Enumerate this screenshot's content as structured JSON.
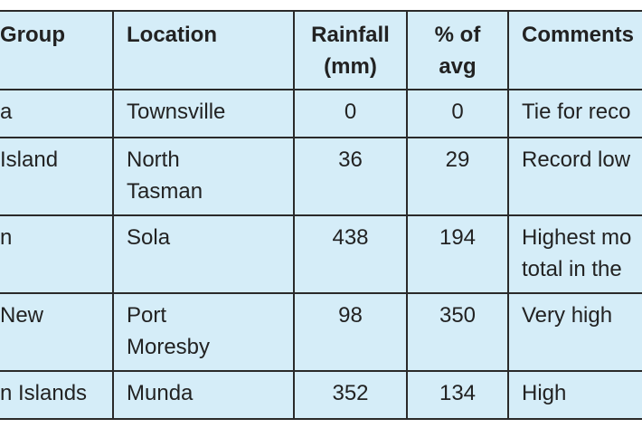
{
  "table": {
    "header": [
      "Group",
      "Location",
      [
        "Rainfall",
        "(mm)"
      ],
      [
        "% of",
        "avg"
      ],
      "Comments"
    ],
    "rows": [
      [
        "a",
        "Townsville",
        0,
        0,
        "Tie for reco"
      ],
      [
        "Island",
        [
          "North",
          "Tasman"
        ],
        36,
        29,
        "Record low"
      ],
      [
        "n",
        "Sola",
        438,
        194,
        [
          "Highest mo",
          "total in the"
        ]
      ],
      [
        "New",
        [
          "Port",
          "Moresby"
        ],
        98,
        350,
        "Very high"
      ],
      [
        "n Islands",
        "Munda",
        352,
        134,
        "High"
      ]
    ]
  }
}
